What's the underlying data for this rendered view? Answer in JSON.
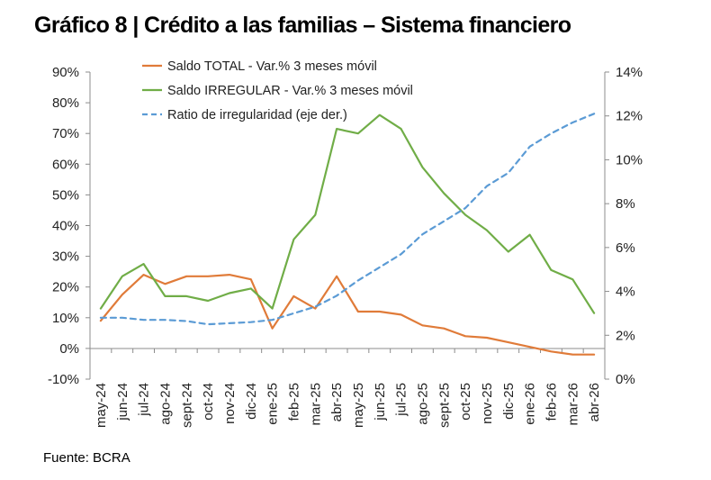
{
  "title": "Gráfico 8 | Crédito a las familias – Sistema financiero",
  "source": "Fuente: BCRA",
  "chart_data": {
    "type": "line",
    "title": "Gráfico 8 | Crédito a las familias – Sistema financiero",
    "categories": [
      "may-24",
      "jun-24",
      "jul-24",
      "ago-24",
      "sept-24",
      "oct-24",
      "nov-24",
      "dic-24",
      "ene-25",
      "feb-25",
      "mar-25",
      "abr-25",
      "may-25",
      "jun-25",
      "jul-25",
      "ago-25",
      "sept-25",
      "oct-25",
      "nov-25",
      "dic-25",
      "ene-26",
      "feb-26",
      "mar-26",
      "abr-26"
    ],
    "y_left": {
      "ylim": [
        -10,
        90
      ],
      "ticks": [
        -10,
        0,
        10,
        20,
        30,
        40,
        50,
        60,
        70,
        80,
        90
      ],
      "tick_labels": [
        "-10%",
        "0%",
        "10%",
        "20%",
        "30%",
        "40%",
        "50%",
        "60%",
        "70%",
        "80%",
        "90%"
      ]
    },
    "y_right": {
      "ylim": [
        0,
        14
      ],
      "ticks": [
        0,
        2,
        4,
        6,
        8,
        10,
        12,
        14
      ],
      "tick_labels": [
        "0%",
        "2%",
        "4%",
        "6%",
        "8%",
        "10%",
        "12%",
        "14%"
      ]
    },
    "legend_position": "top-left",
    "series": [
      {
        "name": "Saldo TOTAL - Var.% 3 meses móvil",
        "axis": "left",
        "color": "#E07B39",
        "style": "solid",
        "values": [
          9,
          17.5,
          24,
          21,
          23.5,
          23.5,
          24,
          22.5,
          6.5,
          17,
          13,
          23.5,
          12,
          12,
          11,
          7.5,
          6.5,
          4,
          3.5,
          2,
          0.5,
          -1,
          -2,
          -2
        ]
      },
      {
        "name": "Saldo IRREGULAR - Var.% 3 meses móvil",
        "axis": "left",
        "color": "#70AD47",
        "style": "solid",
        "values": [
          13,
          23.5,
          27.5,
          17,
          17,
          15.5,
          18,
          19.5,
          13,
          35.5,
          43.5,
          71.5,
          70,
          76,
          71.5,
          59,
          50.5,
          43.5,
          38.5,
          31.5,
          37,
          25.5,
          22.5,
          11.5
        ]
      },
      {
        "name": "Ratio de irregularidad (eje der.)",
        "axis": "right",
        "color": "#5B9BD5",
        "style": "dashed",
        "values": [
          2.8,
          2.8,
          2.7,
          2.7,
          2.65,
          2.5,
          2.55,
          2.6,
          2.7,
          3.0,
          3.3,
          3.8,
          4.5,
          5.1,
          5.7,
          6.6,
          7.2,
          7.8,
          8.8,
          9.4,
          10.6,
          11.2,
          11.7,
          12.1
        ]
      }
    ]
  }
}
